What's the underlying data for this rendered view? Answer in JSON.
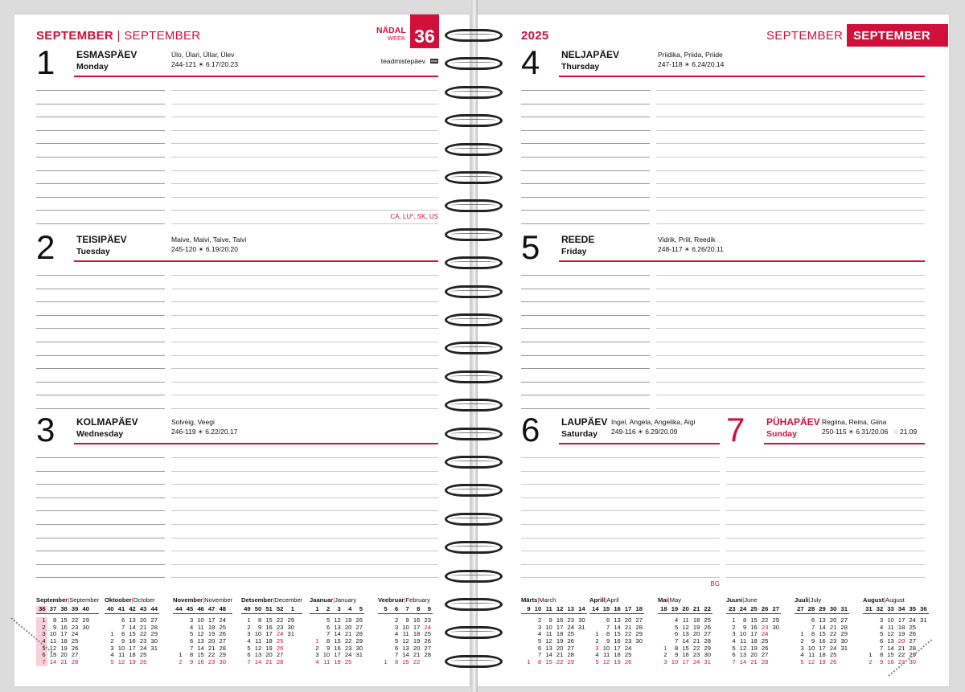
{
  "left_header": {
    "month_et": "SEPTEMBER",
    "separator": "|",
    "month_en": "SEPTEMBER",
    "week_label_et": "NÄDAL",
    "week_label_en": "WEEK",
    "week_number": "36"
  },
  "right_header": {
    "year": "2025",
    "month_et": "SEPTEMBER",
    "month_en": "SEPTEMBER"
  },
  "colors": {
    "accent": "#d0103a",
    "rule": "#c8c8c8"
  },
  "days": [
    {
      "num": "1",
      "name_et": "ESMASPÄEV",
      "name_en": "Monday",
      "names": "Ülo, Ülari, Üllar, Ülev",
      "daycount": "244-121",
      "sun": "6.17/20.23",
      "event": "teadmistepäev",
      "event_icon": "flag-icon",
      "note": "CA, LU*, SK, US"
    },
    {
      "num": "2",
      "name_et": "TEISIPÄEV",
      "name_en": "Tuesday",
      "names": "Maive, Maivi, Taive, Taivi",
      "daycount": "245-120",
      "sun": "6.19/20.20"
    },
    {
      "num": "3",
      "name_et": "KOLMAPÄEV",
      "name_en": "Wednesday",
      "names": "Solveig, Veegi",
      "daycount": "246-119",
      "sun": "6.22/20.17"
    },
    {
      "num": "4",
      "name_et": "NELJAPÄEV",
      "name_en": "Thursday",
      "names": "Priidika, Priida, Priide",
      "daycount": "247-118",
      "sun": "6.24/20.14"
    },
    {
      "num": "5",
      "name_et": "REEDE",
      "name_en": "Friday",
      "names": "Vidrik, Priit, Reedik",
      "daycount": "248-117",
      "sun": "6.26/20.11"
    },
    {
      "num": "6",
      "name_et": "LAUPÄEV",
      "name_en": "Saturday",
      "names": "Ingel, Angela, Angelika, Aigi",
      "daycount": "249-116",
      "sun": "6.29/20.09",
      "note": "BG"
    },
    {
      "num": "7",
      "name_et": "PÜHAPÄEV",
      "name_en": "Sunday",
      "names": "Regiina, Reina, Giina",
      "daycount": "250-115",
      "sun": "6.31/20.06",
      "moon": "21.09",
      "moon_icon": "full-moon-icon",
      "sunday": true
    }
  ],
  "calendars": [
    {
      "et": "September",
      "en": "September",
      "weeks": [
        "36",
        "37",
        "38",
        "39",
        "40"
      ],
      "rows": [
        [
          "1",
          "8",
          "15",
          "22",
          "29"
        ],
        [
          "2",
          "9",
          "16",
          "23",
          "30"
        ],
        [
          "3",
          "10",
          "17",
          "24",
          ""
        ],
        [
          "4",
          "11",
          "18",
          "25",
          ""
        ],
        [
          "5",
          "12",
          "19",
          "26",
          ""
        ],
        [
          "6",
          "13",
          "20",
          "27",
          ""
        ],
        [
          "7",
          "14",
          "21",
          "28",
          ""
        ]
      ],
      "holidays": [],
      "current_week": "36"
    },
    {
      "et": "Oktoober",
      "en": "October",
      "weeks": [
        "40",
        "41",
        "42",
        "43",
        "44"
      ],
      "rows": [
        [
          "",
          "6",
          "13",
          "20",
          "27"
        ],
        [
          "",
          "7",
          "14",
          "21",
          "28"
        ],
        [
          "1",
          "8",
          "15",
          "22",
          "29"
        ],
        [
          "2",
          "9",
          "16",
          "23",
          "30"
        ],
        [
          "3",
          "10",
          "17",
          "24",
          "31"
        ],
        [
          "4",
          "11",
          "18",
          "25",
          ""
        ],
        [
          "5",
          "12",
          "19",
          "26",
          ""
        ]
      ],
      "holidays": []
    },
    {
      "et": "November",
      "en": "November",
      "weeks": [
        "44",
        "45",
        "46",
        "47",
        "48"
      ],
      "rows": [
        [
          "",
          "3",
          "10",
          "17",
          "24"
        ],
        [
          "",
          "4",
          "11",
          "18",
          "25"
        ],
        [
          "",
          "5",
          "12",
          "19",
          "26"
        ],
        [
          "",
          "6",
          "13",
          "20",
          "27"
        ],
        [
          "",
          "7",
          "14",
          "21",
          "28"
        ],
        [
          "1",
          "8",
          "15",
          "22",
          "29"
        ],
        [
          "2",
          "9",
          "16",
          "23",
          "30"
        ]
      ],
      "holidays": []
    },
    {
      "et": "Detsember",
      "en": "December",
      "weeks": [
        "49",
        "50",
        "51",
        "52",
        "1"
      ],
      "rows": [
        [
          "1",
          "8",
          "15",
          "22",
          "29"
        ],
        [
          "2",
          "9",
          "16",
          "23",
          "30"
        ],
        [
          "3",
          "10",
          "17",
          "24",
          "31"
        ],
        [
          "4",
          "11",
          "18",
          "25",
          ""
        ],
        [
          "5",
          "12",
          "19",
          "26",
          ""
        ],
        [
          "6",
          "13",
          "20",
          "27",
          ""
        ],
        [
          "7",
          "14",
          "21",
          "28",
          ""
        ]
      ],
      "holidays": [
        "24",
        "25",
        "26"
      ]
    },
    {
      "et": "Jaanuar",
      "en": "January",
      "weeks": [
        "1",
        "2",
        "3",
        "4",
        "5"
      ],
      "rows": [
        [
          "",
          "5",
          "12",
          "19",
          "26"
        ],
        [
          "",
          "6",
          "13",
          "20",
          "27"
        ],
        [
          "",
          "7",
          "14",
          "21",
          "28"
        ],
        [
          "1",
          "8",
          "15",
          "22",
          "29"
        ],
        [
          "2",
          "9",
          "16",
          "23",
          "30"
        ],
        [
          "3",
          "10",
          "17",
          "24",
          "31"
        ],
        [
          "4",
          "11",
          "18",
          "25",
          ""
        ]
      ],
      "holidays": [
        "1"
      ]
    },
    {
      "et": "Veebruar",
      "en": "February",
      "weeks": [
        "5",
        "6",
        "7",
        "8",
        "9"
      ],
      "rows": [
        [
          "",
          "2",
          "9",
          "16",
          "23"
        ],
        [
          "",
          "3",
          "10",
          "17",
          "24"
        ],
        [
          "",
          "4",
          "11",
          "18",
          "25"
        ],
        [
          "",
          "5",
          "12",
          "19",
          "26"
        ],
        [
          "",
          "6",
          "13",
          "20",
          "27"
        ],
        [
          "",
          "7",
          "14",
          "21",
          "28"
        ],
        [
          "1",
          "8",
          "15",
          "22",
          ""
        ]
      ],
      "holidays": [
        "24"
      ]
    },
    {
      "et": "Märts",
      "en": "March",
      "weeks": [
        "9",
        "10",
        "11",
        "12",
        "13",
        "14"
      ],
      "rows": [
        [
          "",
          "2",
          "9",
          "16",
          "23",
          "30"
        ],
        [
          "",
          "3",
          "10",
          "17",
          "24",
          "31"
        ],
        [
          "",
          "4",
          "11",
          "18",
          "25",
          ""
        ],
        [
          "",
          "5",
          "12",
          "19",
          "26",
          ""
        ],
        [
          "",
          "6",
          "13",
          "20",
          "27",
          ""
        ],
        [
          "",
          "7",
          "14",
          "21",
          "28",
          ""
        ],
        [
          "1",
          "8",
          "15",
          "22",
          "29",
          ""
        ]
      ],
      "holidays": []
    },
    {
      "et": "Aprill",
      "en": "April",
      "weeks": [
        "14",
        "15",
        "16",
        "17",
        "18"
      ],
      "rows": [
        [
          "",
          "6",
          "13",
          "20",
          "27"
        ],
        [
          "",
          "7",
          "14",
          "21",
          "28"
        ],
        [
          "1",
          "8",
          "15",
          "22",
          "29"
        ],
        [
          "2",
          "9",
          "16",
          "23",
          "30"
        ],
        [
          "3",
          "10",
          "17",
          "24",
          ""
        ],
        [
          "4",
          "11",
          "18",
          "25",
          ""
        ],
        [
          "5",
          "12",
          "19",
          "26",
          ""
        ]
      ],
      "holidays": [
        "3"
      ]
    },
    {
      "et": "Mai",
      "en": "May",
      "weeks": [
        "18",
        "19",
        "20",
        "21",
        "22"
      ],
      "rows": [
        [
          "",
          "4",
          "11",
          "18",
          "25"
        ],
        [
          "",
          "5",
          "12",
          "19",
          "26"
        ],
        [
          "",
          "6",
          "13",
          "20",
          "27"
        ],
        [
          "",
          "7",
          "14",
          "21",
          "28"
        ],
        [
          "1",
          "8",
          "15",
          "22",
          "29"
        ],
        [
          "2",
          "9",
          "16",
          "23",
          "30"
        ],
        [
          "3",
          "10",
          "17",
          "24",
          "31"
        ]
      ],
      "holidays": [
        "1"
      ]
    },
    {
      "et": "Juuni",
      "en": "June",
      "weeks": [
        "23",
        "24",
        "25",
        "26",
        "27"
      ],
      "rows": [
        [
          "1",
          "8",
          "15",
          "22",
          "29"
        ],
        [
          "2",
          "9",
          "16",
          "23",
          "30"
        ],
        [
          "3",
          "10",
          "17",
          "24",
          ""
        ],
        [
          "4",
          "11",
          "18",
          "25",
          ""
        ],
        [
          "5",
          "12",
          "19",
          "26",
          ""
        ],
        [
          "6",
          "13",
          "20",
          "27",
          ""
        ],
        [
          "7",
          "14",
          "21",
          "28",
          ""
        ]
      ],
      "holidays": [
        "23",
        "24"
      ]
    },
    {
      "et": "Juuli",
      "en": "July",
      "weeks": [
        "27",
        "28",
        "29",
        "30",
        "31"
      ],
      "rows": [
        [
          "",
          "6",
          "13",
          "20",
          "27"
        ],
        [
          "",
          "7",
          "14",
          "21",
          "28"
        ],
        [
          "1",
          "8",
          "15",
          "22",
          "29"
        ],
        [
          "2",
          "9",
          "16",
          "23",
          "30"
        ],
        [
          "3",
          "10",
          "17",
          "24",
          "31"
        ],
        [
          "4",
          "11",
          "18",
          "25",
          ""
        ],
        [
          "5",
          "12",
          "19",
          "26",
          ""
        ]
      ],
      "holidays": []
    },
    {
      "et": "August",
      "en": "August",
      "weeks": [
        "31",
        "32",
        "33",
        "34",
        "35",
        "36"
      ],
      "rows": [
        [
          "",
          "3",
          "10",
          "17",
          "24",
          "31"
        ],
        [
          "",
          "4",
          "11",
          "18",
          "25",
          ""
        ],
        [
          "",
          "5",
          "12",
          "19",
          "26",
          ""
        ],
        [
          "",
          "6",
          "13",
          "20",
          "27",
          ""
        ],
        [
          "",
          "7",
          "14",
          "21",
          "28",
          ""
        ],
        [
          "1",
          "8",
          "15",
          "22",
          "29",
          ""
        ],
        [
          "2",
          "9",
          "16",
          "23",
          "30",
          ""
        ]
      ],
      "holidays": [
        "20"
      ]
    }
  ]
}
